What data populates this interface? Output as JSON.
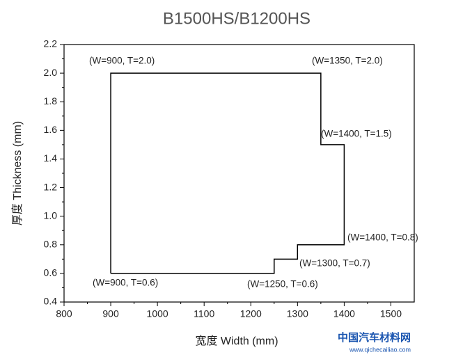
{
  "chart_data": {
    "type": "line",
    "title": "B1500HS/B1200HS",
    "x_label": "宽度 Width (mm)",
    "y_label": "厚度 Thickness (mm)",
    "series": [
      {
        "name": "B1500HS/B1200HS",
        "color": "#000000",
        "x": [
          900,
          900,
          1350,
          1350,
          1400,
          1400,
          1300,
          1300,
          1250,
          1250,
          900
        ],
        "y": [
          0.6,
          2.0,
          2.0,
          1.5,
          1.5,
          0.8,
          0.8,
          0.7,
          0.7,
          0.6,
          0.6
        ]
      }
    ],
    "xlim": [
      800,
      1550
    ],
    "xticks": [
      800,
      900,
      1000,
      1100,
      1200,
      1300,
      1400,
      1500
    ],
    "ylim": [
      0.4,
      2.2
    ],
    "yticks": [
      0.4,
      0.6,
      0.8,
      {
        "value": 1.0,
        "label": "1.0"
      },
      1.2,
      1.4,
      1.6,
      1.8,
      {
        "value": 2.0,
        "label": "2.0"
      },
      2.2
    ],
    "annotations": [
      "(W=900, T=2.0)",
      "(W=1350, T=2.0)",
      "(W=1400, T=1.5)",
      "(W=1400, T=0.8)",
      "(W=1300, T=0.7)",
      "(W=900, T=0.6)",
      "(W=1250, T=0.6)"
    ],
    "watermark": {
      "title": "中国汽车材料网",
      "url": "www.qichecailiao.com"
    }
  }
}
